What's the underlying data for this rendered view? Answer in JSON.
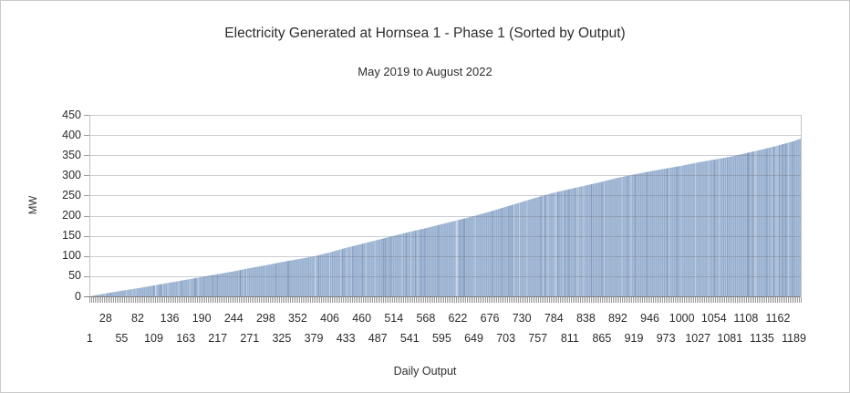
{
  "chart_data": {
    "type": "bar",
    "title": "Electricity Generated at Hornsea 1 - Phase 1 (Sorted by Output)",
    "subtitle": "May 2019 to August 2022",
    "xlabel": "Daily Output",
    "ylabel": "MW",
    "ylim": [
      0,
      450
    ],
    "ytick_step": 50,
    "yticks": [
      0,
      50,
      100,
      150,
      200,
      250,
      300,
      350,
      400,
      450
    ],
    "x_tick_labels": [
      1,
      28,
      55,
      82,
      109,
      136,
      163,
      190,
      217,
      244,
      271,
      298,
      325,
      352,
      379,
      406,
      433,
      460,
      487,
      514,
      541,
      568,
      595,
      622,
      649,
      676,
      703,
      730,
      757,
      784,
      811,
      838,
      865,
      892,
      919,
      946,
      973,
      1000,
      1027,
      1054,
      1081,
      1108,
      1135,
      1162,
      1189
    ],
    "n_bars": 1200,
    "sorted_ascending": true,
    "sample_x": [
      1,
      28,
      55,
      82,
      109,
      136,
      163,
      190,
      217,
      244,
      271,
      298,
      325,
      352,
      379,
      406,
      433,
      460,
      487,
      514,
      541,
      568,
      595,
      622,
      649,
      676,
      703,
      730,
      757,
      784,
      811,
      838,
      865,
      892,
      919,
      946,
      973,
      1000,
      1027,
      1054,
      1081,
      1108,
      1135,
      1162,
      1189,
      1200
    ],
    "sample_y": [
      0,
      7,
      14,
      20,
      27,
      34,
      41,
      48,
      55,
      62,
      70,
      77,
      85,
      92,
      99,
      109,
      120,
      130,
      140,
      150,
      160,
      169,
      179,
      189,
      199,
      210,
      222,
      234,
      246,
      257,
      266,
      275,
      284,
      294,
      302,
      310,
      317,
      324,
      332,
      339,
      346,
      355,
      364,
      374,
      385,
      391
    ],
    "grid": true,
    "legend": "none",
    "colors": {
      "bar_fill": "#93adce",
      "bar_stripe_light": "rgba(255,255,255,0.40)",
      "bar_stripe_dark": "rgba(35,65,105,0.22)",
      "gridline_overlay": "rgba(118,124,136,0.38)",
      "plot_border": "#c2c2c2",
      "axis_line": "#808080",
      "tick_mark": "#9a9a9a",
      "text": "#2b2b2b"
    }
  }
}
